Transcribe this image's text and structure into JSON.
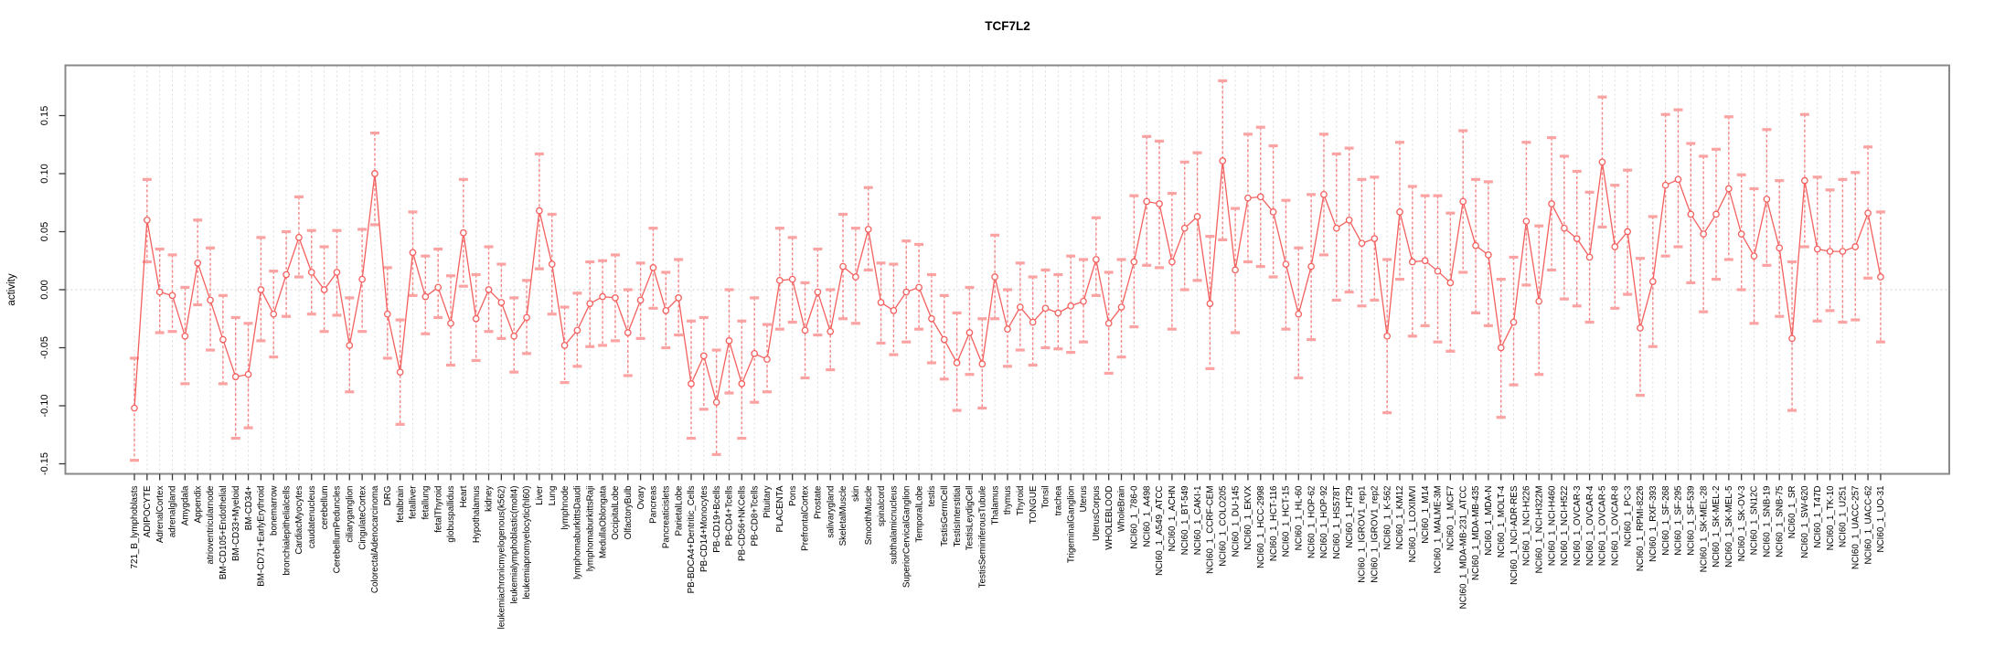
{
  "page": {
    "background": "#ffffff"
  },
  "chart_data": {
    "type": "line",
    "title": "TCF7L2",
    "xlabel": "",
    "ylabel": "activity",
    "legend": "none",
    "grid": "vertical dotted gridline per category; dotted horizontal line at 0",
    "error_bars": true,
    "marker": "open-circle",
    "yticks": [
      0.15,
      0.1,
      0.05,
      0.0,
      -0.05,
      -0.1,
      -0.15
    ],
    "ylim": [
      -0.157,
      0.194
    ],
    "colors": {
      "series": "#f3605e",
      "error_line": "#f58585",
      "error_cap": "#fba3a3",
      "grid": "#dcdcdc",
      "zero_line": "#d0d0d0",
      "box": "#898989",
      "tick": "#3a3a3a",
      "text": "#000000"
    },
    "categories": [
      "721_B_lymphoblasts",
      "ADIPOCYTE",
      "AdrenalCortex",
      "adrenalgland",
      "Amygdala",
      "Appendix",
      "atrioventricularnode",
      "BM-CD105+Endothelial",
      "BM-CD33+Myeloid",
      "BM-CD34+",
      "BM-CD71+EarlyErythroid",
      "bonemarrow",
      "bronchialepithelialcells",
      "CardiacMyocytes",
      "caudatenucleus",
      "cerebellum",
      "CerebellumPeduncles",
      "ciliaryganglion",
      "CingulateCortex",
      "ColorectalAdenocarcinoma",
      "DRG",
      "fetalbrain",
      "fetalliver",
      "fetallung",
      "fetalThyroid",
      "globuspallidus",
      "Heart",
      "Hypothalamus",
      "kidney",
      "leukemiachronicmyelogenous(k562)",
      "leukemialymphoblastic(molt4)",
      "leukemiapromyelocytic(hl60)",
      "Liver",
      "Lung",
      "lymphnode",
      "lymphomaburkittsDaudi",
      "lymphomaburkittsRaji",
      "MedullaOblongata",
      "OccipitalLobe",
      "OlfactoryBulb",
      "Ovary",
      "Pancreas",
      "Pancreaticislets",
      "ParietalLobe",
      "PB-BDCA4+Dentritic_Cells",
      "PB-CD14+Monocytes",
      "PB-CD19+Bcells",
      "PB-CD4+Tcells",
      "PB-CD56+NKCells",
      "PB-CD8+Tcells",
      "Pituitary",
      "PLACENTA",
      "Pons",
      "PrefrontalCortex",
      "Prostate",
      "salivarygland",
      "SkeletalMuscle",
      "skin",
      "SmoothMuscle",
      "spinalcord",
      "subthalamicnucleus",
      "SuperiorCervicalGanglion",
      "TemporalLobe",
      "testis",
      "TestisGermCell",
      "TestisInterstitial",
      "TestisLeydigCell",
      "TestisSeminiferousTubule",
      "Thalamus",
      "thymus",
      "Thyroid",
      "TONGUE",
      "Tonsil",
      "trachea",
      "TrigeminalGanglion",
      "Uterus",
      "UterusCorpus",
      "WHOLEBLOOD",
      "WholeBrain",
      "NCI60_1_786-0",
      "NCI60_1_A498",
      "NCI60_1_A549_ATCC",
      "NCI60_1_ACHN",
      "NCI60_1_BT-549",
      "NCI60_1_CAKI-1",
      "NCI60_1_CCRF-CEM",
      "NCI60_1_COLO205",
      "NCI60_1_DU-145",
      "NCI60_1_EKVX",
      "NCI60_1_HCC-2998",
      "NCI60_1_HCT-116",
      "NCI60_1_HCT-15",
      "NCI60_1_HL-60",
      "NCI60_1_HOP-62",
      "NCI60_1_HOP-92",
      "NCI60_1_HS578T",
      "NCI60_1_HT29",
      "NCI60_1_IGROV1_rep1",
      "NCI60_1_IGROV1_rep2",
      "NCI60_1_K-562",
      "NCI60_1_KM12",
      "NCI60_1_LOXIMVI",
      "NCI60_1_M14",
      "NCI60_1_MALME-3M",
      "NCI60_1_MCF7",
      "NCI60_1_MDA-MB-231_ATCC",
      "NCI60_1_MDA-MB-435",
      "NCI60_1_MDA-N",
      "NCI60_1_MOLT-4",
      "NCI60_1_NCI-ADR-RES",
      "NCI60_1_NCI-H226",
      "NCI60_1_NCI-H322M",
      "NCI60_1_NCI-H460",
      "NCI60_1_NCI-H522",
      "NCI60_1_OVCAR-3",
      "NCI60_1_OVCAR-4",
      "NCI60_1_OVCAR-5",
      "NCI60_1_OVCAR-8",
      "NCI60_1_PC-3",
      "NCI60_1_RPMI-8226",
      "NCI60_1_RXF-393",
      "NCI60_1_SF-268",
      "NCI60_1_SF-295",
      "NCI60_1_SF-539",
      "NCI60_1_SK-MEL-28",
      "NCI60_1_SK-MEL-2",
      "NCI60_1_SK-MEL-5",
      "NCI60_1_SK-OV-3",
      "NCI60_1_SN12C",
      "NCI60_1_SNB-19",
      "NCI60_1_SNB-75",
      "NCI60_1_SR",
      "NCI60_1_SW-620",
      "NCI60_1_T47D",
      "NCI60_1_TK-10",
      "NCI60_1_U251",
      "NCI60_1_UACC-257",
      "NCI60_1_UACC-62",
      "NCI60_1_UO-31"
    ],
    "series": [
      {
        "name": "activity",
        "values": [
          -0.102,
          0.06,
          -0.002,
          -0.005,
          -0.04,
          0.023,
          -0.009,
          -0.043,
          -0.075,
          -0.073,
          0.0,
          -0.021,
          0.013,
          0.045,
          0.015,
          0.0,
          0.015,
          -0.048,
          0.009,
          0.1,
          -0.021,
          -0.071,
          0.032,
          -0.006,
          0.002,
          -0.029,
          0.049,
          -0.025,
          0.0,
          -0.011,
          -0.04,
          -0.024,
          0.068,
          0.022,
          -0.048,
          -0.035,
          -0.012,
          -0.006,
          -0.007,
          -0.037,
          -0.009,
          0.019,
          -0.018,
          -0.007,
          -0.081,
          -0.057,
          -0.097,
          -0.044,
          -0.081,
          -0.055,
          -0.06,
          0.008,
          0.009,
          -0.035,
          -0.002,
          -0.036,
          0.02,
          0.011,
          0.052,
          -0.011,
          -0.018,
          -0.002,
          0.002,
          -0.025,
          -0.043,
          -0.063,
          -0.037,
          -0.064,
          0.011,
          -0.034,
          -0.015,
          -0.028,
          -0.016,
          -0.02,
          -0.014,
          -0.01,
          0.026,
          -0.029,
          -0.015,
          0.024,
          0.076,
          0.074,
          0.024,
          0.053,
          0.063,
          -0.012,
          0.111,
          0.017,
          0.079,
          0.08,
          0.067,
          0.022,
          -0.021,
          0.02,
          0.082,
          0.053,
          0.06,
          0.04,
          0.044,
          -0.04,
          0.067,
          0.024,
          0.025,
          0.016,
          0.006,
          0.076,
          0.038,
          0.03,
          -0.05,
          -0.028,
          0.059,
          -0.01,
          0.074,
          0.053,
          0.044,
          0.028,
          0.11,
          0.037,
          0.05,
          -0.033,
          0.007,
          0.09,
          0.095,
          0.065,
          0.048,
          0.065,
          0.087,
          0.048,
          0.029,
          0.078,
          0.036,
          -0.042,
          0.094,
          0.035,
          0.033,
          0.033,
          0.037,
          0.066,
          0.011
        ],
        "err_lo": [
          -0.147,
          0.024,
          -0.037,
          -0.036,
          -0.081,
          -0.013,
          -0.052,
          -0.081,
          -0.128,
          -0.119,
          -0.044,
          -0.058,
          -0.023,
          0.011,
          -0.021,
          -0.036,
          -0.022,
          -0.088,
          -0.036,
          0.056,
          -0.059,
          -0.116,
          -0.005,
          -0.038,
          -0.024,
          -0.065,
          0.003,
          -0.061,
          -0.036,
          -0.042,
          -0.071,
          -0.055,
          0.018,
          -0.021,
          -0.08,
          -0.066,
          -0.049,
          -0.048,
          -0.044,
          -0.074,
          -0.042,
          -0.016,
          -0.05,
          -0.039,
          -0.128,
          -0.103,
          -0.142,
          -0.089,
          -0.128,
          -0.097,
          -0.088,
          -0.034,
          -0.028,
          -0.076,
          -0.039,
          -0.069,
          -0.025,
          -0.029,
          0.017,
          -0.046,
          -0.056,
          -0.045,
          -0.034,
          -0.063,
          -0.077,
          -0.104,
          -0.073,
          -0.102,
          -0.025,
          -0.066,
          -0.052,
          -0.065,
          -0.05,
          -0.051,
          -0.054,
          -0.045,
          -0.005,
          -0.072,
          -0.058,
          -0.032,
          0.021,
          0.019,
          -0.034,
          0.0,
          0.008,
          -0.068,
          0.043,
          -0.037,
          0.024,
          0.02,
          0.011,
          -0.034,
          -0.076,
          -0.043,
          0.03,
          -0.009,
          -0.002,
          -0.014,
          -0.009,
          -0.106,
          0.009,
          -0.04,
          -0.031,
          -0.045,
          -0.053,
          0.015,
          -0.02,
          -0.031,
          -0.11,
          -0.082,
          0.004,
          -0.073,
          0.017,
          -0.008,
          -0.014,
          -0.028,
          0.054,
          -0.016,
          -0.004,
          -0.091,
          -0.049,
          0.029,
          0.037,
          0.006,
          -0.019,
          0.009,
          0.026,
          0.0,
          -0.029,
          0.021,
          -0.023,
          -0.104,
          0.037,
          -0.027,
          -0.018,
          -0.028,
          -0.026,
          0.01,
          -0.045
        ],
        "err_hi": [
          -0.059,
          0.095,
          0.035,
          0.03,
          0.002,
          0.06,
          0.036,
          -0.005,
          -0.024,
          -0.029,
          0.045,
          0.016,
          0.05,
          0.08,
          0.051,
          0.037,
          0.051,
          -0.007,
          0.052,
          0.135,
          0.019,
          -0.026,
          0.067,
          0.029,
          0.035,
          0.012,
          0.095,
          0.013,
          0.037,
          0.022,
          -0.007,
          0.008,
          0.117,
          0.065,
          -0.015,
          -0.003,
          0.024,
          0.025,
          0.03,
          0.0,
          0.023,
          0.053,
          0.015,
          0.026,
          -0.027,
          -0.024,
          -0.052,
          0.0,
          -0.027,
          -0.007,
          -0.03,
          0.053,
          0.045,
          0.006,
          0.035,
          0.0,
          0.065,
          0.053,
          0.088,
          0.023,
          0.022,
          0.042,
          0.039,
          0.013,
          -0.005,
          -0.02,
          0.002,
          -0.025,
          0.047,
          0.0,
          0.023,
          0.011,
          0.017,
          0.013,
          0.029,
          0.026,
          0.062,
          0.015,
          0.026,
          0.081,
          0.132,
          0.128,
          0.083,
          0.11,
          0.118,
          0.046,
          0.18,
          0.07,
          0.134,
          0.14,
          0.124,
          0.077,
          0.036,
          0.082,
          0.134,
          0.117,
          0.122,
          0.095,
          0.097,
          0.026,
          0.127,
          0.089,
          0.081,
          0.081,
          0.066,
          0.137,
          0.095,
          0.093,
          0.009,
          0.028,
          0.127,
          0.055,
          0.131,
          0.115,
          0.102,
          0.084,
          0.166,
          0.09,
          0.103,
          0.027,
          0.063,
          0.151,
          0.155,
          0.126,
          0.115,
          0.121,
          0.149,
          0.099,
          0.087,
          0.138,
          0.094,
          0.024,
          0.151,
          0.097,
          0.086,
          0.095,
          0.101,
          0.123,
          0.067
        ]
      }
    ]
  }
}
